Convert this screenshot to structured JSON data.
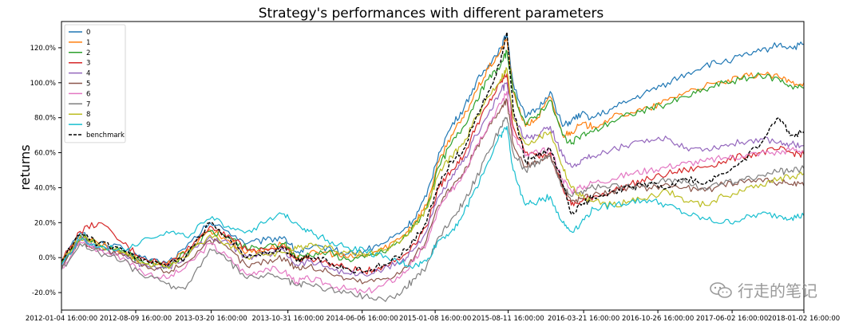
{
  "watermark": {
    "text": "行走的笔记",
    "icon": "wechat-icon"
  },
  "chart_data": {
    "type": "line",
    "title": "Strategy's performances with different parameters",
    "xlabel": "",
    "ylabel": "returns",
    "ylim": [
      -30,
      135
    ],
    "yticks": [
      -20,
      0,
      20,
      40,
      60,
      80,
      100,
      120
    ],
    "ytick_labels": [
      "-20.0%",
      "0.0%",
      "20.0%",
      "40.0%",
      "60.0%",
      "80.0%",
      "100.0%",
      "120.0%"
    ],
    "x_range": [
      2012.0,
      2018.0
    ],
    "xticks": [
      2012.0,
      2012.6,
      2013.21,
      2013.83,
      2014.43,
      2015.02,
      2015.61,
      2016.22,
      2016.82,
      2017.42,
      2018.0
    ],
    "xtick_labels": [
      "2012-01-04 16:00:00",
      "2012-08-09 16:00:00",
      "2013-03-20 16:00:00",
      "2013-10-31 16:00:00",
      "2014-06-06 16:00:00",
      "2015-01-08 16:00:00",
      "2015-08-11 16:00:00",
      "2016-03-21 16:00:00",
      "2016-10-26 16:00:00",
      "2017-06-02 16:00:00",
      "2018-01-02 16:00:00"
    ],
    "legend_position": "top-left",
    "grid": false,
    "series": [
      {
        "name": "0",
        "color": "#1f77b4",
        "dashed": false,
        "x": [
          2012.0,
          2012.15,
          2012.3,
          2012.5,
          2012.65,
          2012.85,
          2013.0,
          2013.2,
          2013.35,
          2013.5,
          2013.65,
          2013.8,
          2013.9,
          2014.0,
          2014.15,
          2014.3,
          2014.45,
          2014.6,
          2014.75,
          2014.85,
          2014.95,
          2015.05,
          2015.15,
          2015.25,
          2015.35,
          2015.45,
          2015.55,
          2015.6,
          2015.65,
          2015.75,
          2015.85,
          2015.95,
          2016.05,
          2016.12,
          2016.2,
          2016.3,
          2016.45,
          2016.6,
          2016.75,
          2016.9,
          2017.05,
          2017.2,
          2017.35,
          2017.5,
          2017.65,
          2017.8,
          2017.9,
          2018.0
        ],
        "y": [
          -2,
          14,
          8,
          5,
          0,
          -3,
          5,
          20,
          15,
          8,
          10,
          12,
          3,
          5,
          6,
          2,
          4,
          8,
          15,
          22,
          35,
          60,
          75,
          85,
          100,
          110,
          120,
          128,
          100,
          80,
          85,
          95,
          75,
          78,
          82,
          80,
          85,
          90,
          95,
          100,
          105,
          110,
          112,
          115,
          118,
          122,
          120,
          122
        ]
      },
      {
        "name": "1",
        "color": "#ff7f0e",
        "dashed": false,
        "x": [
          2012.0,
          2012.15,
          2012.3,
          2012.5,
          2012.65,
          2012.85,
          2013.0,
          2013.2,
          2013.35,
          2013.5,
          2013.65,
          2013.8,
          2013.9,
          2014.0,
          2014.15,
          2014.3,
          2014.45,
          2014.6,
          2014.75,
          2014.85,
          2014.95,
          2015.05,
          2015.15,
          2015.25,
          2015.35,
          2015.45,
          2015.55,
          2015.6,
          2015.65,
          2015.75,
          2015.85,
          2015.95,
          2016.05,
          2016.12,
          2016.2,
          2016.3,
          2016.45,
          2016.6,
          2016.75,
          2016.9,
          2017.05,
          2017.2,
          2017.35,
          2017.5,
          2017.65,
          2017.8,
          2017.9,
          2018.0
        ],
        "y": [
          -3,
          12,
          8,
          3,
          -2,
          -4,
          3,
          16,
          10,
          3,
          5,
          8,
          -1,
          2,
          3,
          0,
          1,
          5,
          12,
          20,
          30,
          55,
          70,
          80,
          95,
          108,
          118,
          125,
          95,
          75,
          80,
          92,
          70,
          72,
          76,
          75,
          80,
          83,
          85,
          90,
          95,
          98,
          100,
          103,
          105,
          103,
          100,
          100
        ]
      },
      {
        "name": "2",
        "color": "#2ca02c",
        "dashed": false,
        "x": [
          2012.0,
          2012.15,
          2012.3,
          2012.5,
          2012.65,
          2012.85,
          2013.0,
          2013.2,
          2013.35,
          2013.5,
          2013.65,
          2013.8,
          2013.9,
          2014.0,
          2014.15,
          2014.3,
          2014.45,
          2014.6,
          2014.75,
          2014.85,
          2014.95,
          2015.05,
          2015.15,
          2015.25,
          2015.35,
          2015.45,
          2015.55,
          2015.6,
          2015.65,
          2015.75,
          2015.85,
          2015.95,
          2016.05,
          2016.12,
          2016.2,
          2016.3,
          2016.45,
          2016.6,
          2016.75,
          2016.9,
          2017.05,
          2017.2,
          2017.35,
          2017.5,
          2017.65,
          2017.8,
          2017.9,
          2018.0
        ],
        "y": [
          -4,
          13,
          7,
          4,
          -2,
          -5,
          2,
          15,
          12,
          5,
          6,
          8,
          0,
          2,
          3,
          -1,
          0,
          3,
          10,
          18,
          28,
          52,
          65,
          75,
          90,
          102,
          110,
          118,
          95,
          76,
          82,
          90,
          70,
          65,
          70,
          72,
          78,
          82,
          85,
          88,
          92,
          96,
          100,
          102,
          104,
          102,
          98,
          97
        ]
      },
      {
        "name": "3",
        "color": "#d62728",
        "dashed": false,
        "x": [
          2012.0,
          2012.15,
          2012.3,
          2012.5,
          2012.65,
          2012.85,
          2013.0,
          2013.2,
          2013.35,
          2013.5,
          2013.65,
          2013.8,
          2013.9,
          2014.0,
          2014.15,
          2014.3,
          2014.45,
          2014.6,
          2014.75,
          2014.85,
          2014.95,
          2015.05,
          2015.15,
          2015.25,
          2015.35,
          2015.45,
          2015.55,
          2015.6,
          2015.65,
          2015.75,
          2015.85,
          2015.95,
          2016.05,
          2016.12,
          2016.2,
          2016.3,
          2016.45,
          2016.6,
          2016.75,
          2016.9,
          2017.05,
          2017.2,
          2017.35,
          2017.5,
          2017.65,
          2017.8,
          2017.9,
          2018.0
        ],
        "y": [
          -2,
          15,
          20,
          8,
          0,
          -4,
          3,
          18,
          13,
          4,
          5,
          6,
          -2,
          0,
          -3,
          -6,
          -8,
          -5,
          0,
          8,
          18,
          40,
          50,
          58,
          75,
          88,
          100,
          105,
          75,
          60,
          58,
          60,
          40,
          30,
          32,
          35,
          38,
          42,
          45,
          48,
          50,
          52,
          55,
          58,
          60,
          62,
          60,
          59
        ]
      },
      {
        "name": "4",
        "color": "#9467bd",
        "dashed": false,
        "x": [
          2012.0,
          2012.15,
          2012.3,
          2012.5,
          2012.65,
          2012.85,
          2013.0,
          2013.2,
          2013.35,
          2013.5,
          2013.65,
          2013.8,
          2013.9,
          2014.0,
          2014.15,
          2014.3,
          2014.45,
          2014.6,
          2014.75,
          2014.85,
          2014.95,
          2015.05,
          2015.15,
          2015.25,
          2015.35,
          2015.45,
          2015.55,
          2015.6,
          2015.65,
          2015.75,
          2015.85,
          2015.95,
          2016.05,
          2016.12,
          2016.2,
          2016.3,
          2016.45,
          2016.6,
          2016.75,
          2016.9,
          2017.05,
          2017.2,
          2017.35,
          2017.5,
          2017.65,
          2017.8,
          2017.9,
          2018.0
        ],
        "y": [
          -5,
          11,
          6,
          2,
          -4,
          -6,
          0,
          12,
          8,
          0,
          2,
          4,
          -4,
          -2,
          -5,
          -9,
          -10,
          -7,
          -2,
          5,
          15,
          35,
          45,
          55,
          70,
          82,
          95,
          100,
          80,
          68,
          70,
          75,
          58,
          52,
          56,
          58,
          62,
          65,
          66,
          68,
          63,
          62,
          64,
          66,
          68,
          66,
          65,
          64
        ]
      },
      {
        "name": "5",
        "color": "#8c564b",
        "dashed": false,
        "x": [
          2012.0,
          2012.15,
          2012.3,
          2012.5,
          2012.65,
          2012.85,
          2013.0,
          2013.2,
          2013.35,
          2013.5,
          2013.65,
          2013.8,
          2013.9,
          2014.0,
          2014.15,
          2014.3,
          2014.45,
          2014.6,
          2014.75,
          2014.85,
          2014.95,
          2015.05,
          2015.15,
          2015.25,
          2015.35,
          2015.45,
          2015.55,
          2015.6,
          2015.65,
          2015.75,
          2015.85,
          2015.95,
          2016.05,
          2016.12,
          2016.2,
          2016.3,
          2016.45,
          2016.6,
          2016.75,
          2016.9,
          2017.05,
          2017.2,
          2017.35,
          2017.5,
          2017.65,
          2017.8,
          2017.9,
          2018.0
        ],
        "y": [
          -5,
          10,
          5,
          1,
          -5,
          -8,
          -3,
          10,
          5,
          -5,
          -2,
          0,
          -6,
          -5,
          -8,
          -12,
          -14,
          -12,
          -8,
          0,
          10,
          30,
          40,
          48,
          62,
          75,
          85,
          90,
          65,
          52,
          55,
          58,
          42,
          32,
          34,
          36,
          38,
          40,
          40,
          42,
          40,
          38,
          42,
          44,
          45,
          43,
          42,
          41
        ]
      },
      {
        "name": "6",
        "color": "#e377c2",
        "dashed": false,
        "x": [
          2012.0,
          2012.15,
          2012.3,
          2012.5,
          2012.65,
          2012.85,
          2013.0,
          2013.2,
          2013.35,
          2013.5,
          2013.65,
          2013.8,
          2013.9,
          2014.0,
          2014.15,
          2014.3,
          2014.45,
          2014.6,
          2014.75,
          2014.85,
          2014.95,
          2015.05,
          2015.15,
          2015.25,
          2015.35,
          2015.45,
          2015.55,
          2015.6,
          2015.65,
          2015.75,
          2015.85,
          2015.95,
          2016.05,
          2016.12,
          2016.2,
          2016.3,
          2016.45,
          2016.6,
          2016.75,
          2016.9,
          2017.05,
          2017.2,
          2017.35,
          2017.5,
          2017.65,
          2017.8,
          2017.9,
          2018.0
        ],
        "y": [
          -6,
          9,
          4,
          0,
          -8,
          -12,
          -6,
          8,
          0,
          -10,
          -6,
          -8,
          -14,
          -12,
          -15,
          -18,
          -20,
          -16,
          -10,
          -2,
          8,
          28,
          38,
          48,
          64,
          76,
          88,
          95,
          70,
          58,
          60,
          62,
          45,
          38,
          40,
          43,
          45,
          48,
          50,
          52,
          54,
          55,
          57,
          58,
          60,
          60,
          62,
          61
        ]
      },
      {
        "name": "7",
        "color": "#7f7f7f",
        "dashed": false,
        "x": [
          2012.0,
          2012.15,
          2012.3,
          2012.5,
          2012.65,
          2012.85,
          2013.0,
          2013.2,
          2013.35,
          2013.5,
          2013.65,
          2013.8,
          2013.9,
          2014.0,
          2014.15,
          2014.3,
          2014.45,
          2014.6,
          2014.75,
          2014.85,
          2014.95,
          2015.05,
          2015.15,
          2015.25,
          2015.35,
          2015.45,
          2015.55,
          2015.6,
          2015.65,
          2015.75,
          2015.85,
          2015.95,
          2016.05,
          2016.12,
          2016.2,
          2016.3,
          2016.45,
          2016.6,
          2016.75,
          2016.9,
          2017.05,
          2017.2,
          2017.35,
          2017.5,
          2017.65,
          2017.8,
          2017.9,
          2018.0
        ],
        "y": [
          -7,
          8,
          3,
          -2,
          -10,
          -15,
          -18,
          5,
          -2,
          -12,
          -10,
          -12,
          -16,
          -15,
          -18,
          -20,
          -22,
          -24,
          -20,
          -12,
          -5,
          12,
          22,
          32,
          45,
          60,
          75,
          80,
          60,
          50,
          55,
          58,
          40,
          35,
          38,
          40,
          42,
          40,
          43,
          45,
          43,
          40,
          42,
          45,
          47,
          49,
          50,
          51
        ]
      },
      {
        "name": "8",
        "color": "#bcbd22",
        "dashed": false,
        "x": [
          2012.0,
          2012.15,
          2012.3,
          2012.5,
          2012.65,
          2012.85,
          2013.0,
          2013.2,
          2013.35,
          2013.5,
          2013.65,
          2013.8,
          2013.9,
          2014.0,
          2014.15,
          2014.3,
          2014.45,
          2014.6,
          2014.75,
          2014.85,
          2014.95,
          2015.05,
          2015.15,
          2015.25,
          2015.35,
          2015.45,
          2015.55,
          2015.6,
          2015.65,
          2015.75,
          2015.85,
          2015.95,
          2016.05,
          2016.12,
          2016.2,
          2016.3,
          2016.45,
          2016.6,
          2016.75,
          2016.9,
          2017.05,
          2017.2,
          2017.35,
          2017.5,
          2017.65,
          2017.8,
          2017.9,
          2018.0
        ],
        "y": [
          -3,
          12,
          7,
          3,
          -3,
          -5,
          0,
          13,
          8,
          0,
          2,
          3,
          5,
          8,
          6,
          3,
          2,
          4,
          10,
          18,
          28,
          48,
          58,
          65,
          80,
          92,
          102,
          108,
          80,
          65,
          68,
          72,
          52,
          40,
          35,
          32,
          30,
          32,
          35,
          38,
          32,
          30,
          35,
          38,
          42,
          45,
          46,
          48
        ]
      },
      {
        "name": "9",
        "color": "#17becf",
        "dashed": false,
        "x": [
          2012.0,
          2012.15,
          2012.3,
          2012.5,
          2012.65,
          2012.85,
          2013.0,
          2013.2,
          2013.35,
          2013.5,
          2013.65,
          2013.8,
          2013.9,
          2014.0,
          2014.15,
          2014.3,
          2014.45,
          2014.6,
          2014.75,
          2014.85,
          2014.95,
          2015.05,
          2015.15,
          2015.25,
          2015.35,
          2015.45,
          2015.55,
          2015.6,
          2015.65,
          2015.75,
          2015.85,
          2015.95,
          2016.05,
          2016.12,
          2016.2,
          2016.3,
          2016.45,
          2016.6,
          2016.75,
          2016.9,
          2017.05,
          2017.2,
          2017.35,
          2017.5,
          2017.65,
          2017.8,
          2017.9,
          2018.0
        ],
        "y": [
          -4,
          10,
          6,
          5,
          10,
          15,
          12,
          22,
          18,
          15,
          20,
          25,
          20,
          15,
          10,
          6,
          4,
          0,
          -3,
          -5,
          -2,
          10,
          15,
          25,
          40,
          55,
          70,
          75,
          50,
          30,
          32,
          35,
          20,
          15,
          20,
          28,
          30,
          32,
          33,
          30,
          25,
          22,
          20,
          22,
          25,
          24,
          23,
          24
        ]
      },
      {
        "name": "benchmark",
        "color": "#000000",
        "dashed": true,
        "x": [
          2012.0,
          2012.15,
          2012.3,
          2012.5,
          2012.65,
          2012.85,
          2013.0,
          2013.2,
          2013.35,
          2013.5,
          2013.65,
          2013.8,
          2013.9,
          2014.0,
          2014.15,
          2014.3,
          2014.45,
          2014.6,
          2014.75,
          2014.85,
          2014.95,
          2015.05,
          2015.15,
          2015.25,
          2015.35,
          2015.45,
          2015.55,
          2015.6,
          2015.65,
          2015.75,
          2015.85,
          2015.95,
          2016.05,
          2016.12,
          2016.2,
          2016.3,
          2016.45,
          2016.6,
          2016.75,
          2016.9,
          2017.05,
          2017.2,
          2017.35,
          2017.5,
          2017.65,
          2017.8,
          2017.9,
          2018.0
        ],
        "y": [
          -2,
          13,
          8,
          4,
          -2,
          -5,
          0,
          20,
          12,
          0,
          3,
          5,
          -2,
          1,
          -2,
          -6,
          -8,
          -4,
          2,
          10,
          20,
          42,
          55,
          62,
          80,
          95,
          112,
          129,
          85,
          55,
          58,
          62,
          42,
          25,
          30,
          35,
          38,
          40,
          42,
          40,
          45,
          42,
          48,
          55,
          65,
          80,
          70,
          72
        ]
      }
    ]
  }
}
